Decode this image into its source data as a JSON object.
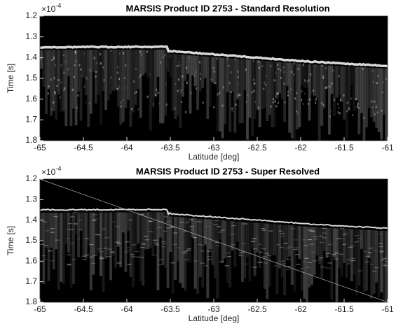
{
  "chart_data": [
    {
      "type": "image",
      "title": "MARSIS Product ID 2753 - Standard Resolution",
      "xlabel": "Latitude [deg]",
      "ylabel": "Time [s]",
      "y_multiplier": {
        "base": "×10",
        "exponent": "-4"
      },
      "xlim": [
        -65,
        -61
      ],
      "xticks": [
        -65,
        -64.5,
        -64,
        -63.5,
        -63,
        -62.5,
        -62,
        -61.5,
        -61
      ],
      "ylim": [
        1.2,
        1.8
      ],
      "yticks": [
        1.2,
        1.3,
        1.4,
        1.5,
        1.6,
        1.7,
        1.8
      ],
      "y_inverted": true
    },
    {
      "type": "image",
      "title": "MARSIS Product ID 2753 - Super Resolved",
      "xlabel": "Latitude [deg]",
      "ylabel": "Time [s]",
      "y_multiplier": {
        "base": "×10",
        "exponent": "-4"
      },
      "xlim": [
        -65,
        -61
      ],
      "xticks": [
        -65,
        -64.5,
        -64,
        -63.5,
        -63,
        -62.5,
        -62,
        -61.5,
        -61
      ],
      "ylim": [
        1.2,
        1.8
      ],
      "yticks": [
        1.2,
        1.3,
        1.4,
        1.5,
        1.6,
        1.7,
        1.8
      ],
      "y_inverted": true
    }
  ]
}
